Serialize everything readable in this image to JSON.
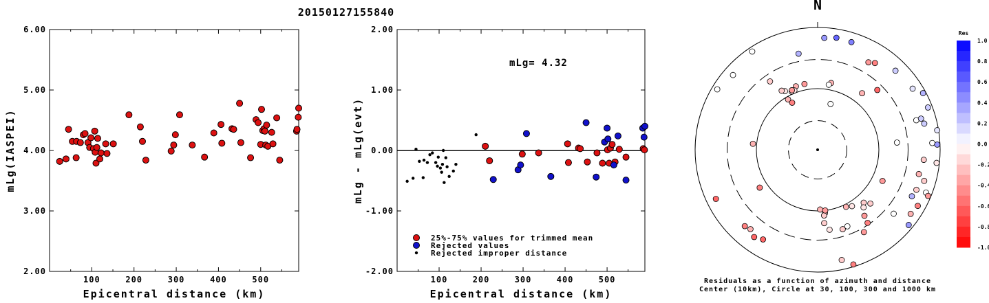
{
  "title": "20150127155840",
  "colors": {
    "trimmed": "#dd1111",
    "rejected": "#1111cc",
    "improper": "#000000",
    "positive_residual": "#0000ff",
    "negative_residual": "#ff0000"
  },
  "chart_data": [
    {
      "type": "scatter",
      "ylabel": "mLg(IASPEI)",
      "xlabel": "Epicentral distance (km)",
      "xlim": [
        0,
        590
      ],
      "ylim": [
        2.0,
        6.0
      ],
      "xticks": [
        "100",
        "200",
        "300",
        "400",
        "500"
      ],
      "yticks": [
        "2.00",
        "3.00",
        "4.00",
        "5.00",
        "6.00"
      ],
      "series": [
        {
          "kind": "trimmed",
          "x": [
            24,
            39,
            45,
            54,
            63,
            64,
            73,
            80,
            84,
            91,
            95,
            98,
            104,
            107,
            108,
            110,
            112,
            114,
            119,
            122,
            133,
            136,
            151,
            188,
            215,
            220,
            228,
            288,
            294,
            298,
            308,
            338,
            367,
            389,
            406,
            408,
            432,
            436,
            450,
            453,
            476,
            489,
            494,
            500,
            502,
            505,
            508,
            510,
            512,
            514,
            517,
            526,
            529,
            538,
            545,
            585,
            586,
            589,
            590
          ],
          "y": [
            3.82,
            3.86,
            4.35,
            4.15,
            3.88,
            4.15,
            4.13,
            4.26,
            4.28,
            4.13,
            4.05,
            4.21,
            4.03,
            4.32,
            3.97,
            3.79,
            4.05,
            4.2,
            3.86,
            3.96,
            4.11,
            3.95,
            4.11,
            4.59,
            4.39,
            4.15,
            3.84,
            3.99,
            4.09,
            4.26,
            4.59,
            4.09,
            3.89,
            4.29,
            4.43,
            4.12,
            4.36,
            4.35,
            4.78,
            4.13,
            3.88,
            4.51,
            4.46,
            4.1,
            4.68,
            4.33,
            4.36,
            4.32,
            4.09,
            4.42,
            4.07,
            4.3,
            4.11,
            4.54,
            3.84,
            4.32,
            4.35,
            4.55,
            4.7
          ]
        }
      ]
    },
    {
      "type": "scatter",
      "ylabel": "mLg - mLg(evt)",
      "xlabel": "Epicentral distance (km)",
      "xlim": [
        0,
        590
      ],
      "ylim": [
        -2.0,
        2.0
      ],
      "xticks": [
        "100",
        "200",
        "300",
        "400",
        "500"
      ],
      "yticks": [
        "-2.00",
        "-1.00",
        "0.00",
        "1.00",
        "2.00"
      ],
      "annotation": "mLg= 4.32",
      "legend": [
        "25%-75% values for trimmed mean",
        "Rejected values",
        "Rejected improper distance"
      ],
      "series": [
        {
          "kind": "trimmed",
          "x": [
            210,
            220,
            298,
            337,
            406,
            408,
            432,
            436,
            453,
            476,
            489,
            501,
            505,
            508,
            512,
            519,
            529,
            545,
            586,
            589
          ],
          "y": [
            0.07,
            -0.17,
            -0.06,
            -0.04,
            0.11,
            -0.2,
            0.04,
            0.03,
            -0.19,
            -0.04,
            -0.21,
            0.01,
            -0.21,
            0.04,
            0.1,
            -0.19,
            0.02,
            -0.11,
            0.03,
            0.01
          ]
        },
        {
          "kind": "rejected",
          "x": [
            229,
            288,
            294,
            308,
            366,
            450,
            474,
            494,
            500,
            502,
            516,
            526,
            545,
            585,
            588,
            590
          ],
          "y": [
            -0.48,
            -0.32,
            -0.24,
            0.28,
            -0.43,
            0.46,
            -0.44,
            0.14,
            0.37,
            0.19,
            -0.24,
            0.24,
            -0.49,
            0.37,
            0.22,
            0.4
          ]
        },
        {
          "kind": "improper",
          "x": [
            24,
            38,
            45,
            53,
            62,
            64,
            72,
            78,
            84,
            92,
            96,
            98,
            103,
            106,
            108,
            110,
            112,
            116,
            119,
            124,
            134,
            140,
            188
          ],
          "y": [
            -0.51,
            -0.46,
            0.02,
            -0.18,
            -0.45,
            -0.16,
            -0.2,
            -0.07,
            -0.04,
            -0.2,
            -0.26,
            -0.11,
            -0.29,
            -0.36,
            -0.23,
            0.0,
            -0.53,
            -0.12,
            -0.27,
            -0.43,
            -0.34,
            -0.23,
            0.26
          ]
        }
      ]
    },
    {
      "type": "scatter",
      "subtype": "polar",
      "north_label": "N",
      "caption_line1": "Residuals as a function of azimuth and distance",
      "caption_line2": "Center (10km), Circle at 30, 100, 300 and 1000 km",
      "colorbar_title": "Res",
      "colorbar_ticks": [
        "1.0",
        "0.8",
        "0.6",
        "0.4",
        "0.2",
        "0.0",
        "-0.2",
        "-0.4",
        "-0.6",
        "-0.8",
        "-1.0"
      ],
      "colorbar_range": [
        -1.0,
        1.0
      ],
      "rings_km": [
        30,
        100,
        300,
        1000
      ],
      "stations": {
        "azimuth_deg": [
          -33.6,
          -11.2,
          3.4,
          9.5,
          17.4,
          30.1,
          33.4,
          11.4,
          15.7,
          -48.5,
          -58.9,
          -11.3,
          -18.9,
          -24.0,
          -21.4,
          -29.1,
          -31.3,
          -23.3,
          -30.4,
          -34.8,
          -28.4,
          9.7,
          44.9,
          84.8,
          115.7,
          38.1,
          -84.7,
          -123.2,
          177.6,
          173.4,
          174.4,
          172.9,
          158.8,
          153.6,
          139.0,
          141.5,
          135.6,
          148.7,
          144.7,
          44.5,
          69.0,
          73.3,
          73.2,
          57.2,
          61.7,
          76.2,
          80.7,
          86.6,
          87.5,
          95.4,
          96.3,
          103.5,
          106.3,
          112.1,
          111.6,
          116.3,
          112.7,
          119.3,
          124.6,
          130.1,
          129.6,
          145.7,
          150.7,
          162.5,
          167.7,
          162.7,
          -136.4,
          -144.0,
          -139.8,
          -148.7,
          174.9,
          171.5,
          -115.8
        ],
        "distance_km": [
          850,
          400,
          680,
          720,
          700,
          450,
          500,
          130,
          60,
          700,
          820,
          125,
          125,
          110,
          110,
          125,
          135,
          115,
          90,
          230,
          75,
          120,
          240,
          200,
          150,
          150,
          115,
          135,
          95,
          110,
          120,
          100,
          220,
          110,
          140,
          160,
          170,
          120,
          210,
          650,
          850,
          480,
          580,
          700,
          900,
          620,
          950,
          750,
          900,
          550,
          900,
          500,
          650,
          550,
          800,
          520,
          900,
          750,
          700,
          420,
          850,
          280,
          350,
          230,
          700,
          920,
          530,
          580,
          500,
          520,
          160,
          210,
          700
        ],
        "residual": [
          0.0,
          0.3,
          0.4,
          0.6,
          0.5,
          -0.4,
          -0.5,
          -0.3,
          0.0,
          0.0,
          0.0,
          -0.4,
          -0.3,
          -0.1,
          -0.1,
          -0.1,
          -0.2,
          -0.4,
          -0.3,
          -0.2,
          -0.5,
          0.0,
          -0.6,
          0.0,
          -0.4,
          -0.3,
          -0.3,
          -0.5,
          -0.3,
          -0.2,
          -0.2,
          -0.4,
          0.0,
          -0.3,
          -0.2,
          -0.1,
          -0.2,
          -0.1,
          -0.4,
          0.2,
          0.2,
          0.0,
          0.2,
          0.1,
          0.3,
          0.2,
          0.1,
          0.0,
          0.4,
          -0.2,
          -0.1,
          -0.3,
          -0.2,
          -0.2,
          0.0,
          0.3,
          -0.4,
          -0.5,
          -0.3,
          0.0,
          0.4,
          -0.5,
          -0.4,
          -0.2,
          -0.2,
          -0.5,
          -0.5,
          -0.6,
          -0.3,
          -0.6,
          -0.2,
          -0.1,
          -0.6
        ]
      }
    }
  ]
}
